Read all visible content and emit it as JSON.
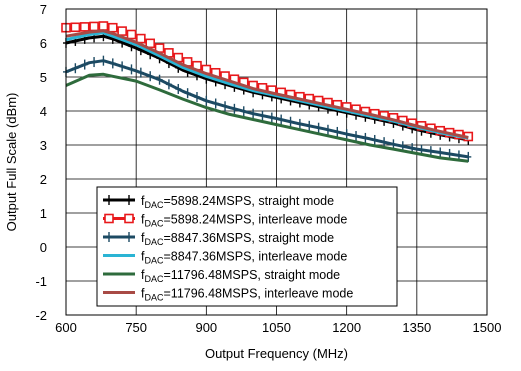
{
  "chart_data": {
    "type": "line",
    "title": "",
    "xlabel": "Output Frequency (MHz)",
    "ylabel": "Output Full Scale (dBm)",
    "xlim": [
      600,
      1500
    ],
    "ylim": [
      -2,
      7
    ],
    "xticks": [
      600,
      750,
      900,
      1050,
      1200,
      1350,
      1500
    ],
    "yticks": [
      -2,
      -1,
      0,
      1,
      2,
      3,
      4,
      5,
      6,
      7
    ],
    "grid": true,
    "legend_position": "bottom-left",
    "series": [
      {
        "name_main": "f",
        "name_sub": "DAC",
        "name_rest": "=5898.24MSPS, straight mode",
        "color": "#000000",
        "marker": "plus",
        "x": [
          600,
          650,
          680,
          700,
          750,
          800,
          850,
          900,
          950,
          1000,
          1050,
          1100,
          1150,
          1200,
          1250,
          1300,
          1350,
          1400,
          1460
        ],
        "y": [
          6.0,
          6.15,
          6.2,
          6.12,
          5.85,
          5.55,
          5.2,
          4.95,
          4.75,
          4.55,
          4.4,
          4.25,
          4.1,
          3.95,
          3.8,
          3.65,
          3.45,
          3.3,
          3.15
        ]
      },
      {
        "name_main": "f",
        "name_sub": "DAC",
        "name_rest": "=5898.24MSPS, interleave mode",
        "color": "#e8181b",
        "marker": "square",
        "x": [
          600,
          650,
          680,
          700,
          750,
          800,
          850,
          900,
          950,
          1000,
          1050,
          1100,
          1150,
          1200,
          1250,
          1300,
          1350,
          1400,
          1460
        ],
        "y": [
          6.45,
          6.48,
          6.5,
          6.45,
          6.2,
          5.85,
          5.5,
          5.22,
          4.98,
          4.75,
          4.58,
          4.42,
          4.28,
          4.12,
          3.95,
          3.8,
          3.6,
          3.42,
          3.25
        ]
      },
      {
        "name_main": "f",
        "name_sub": "DAC",
        "name_rest": "=8847.36MSPS, straight mode",
        "color": "#1c4a63",
        "marker": "plus",
        "x": [
          600,
          650,
          680,
          700,
          750,
          800,
          850,
          900,
          950,
          1000,
          1050,
          1100,
          1150,
          1200,
          1250,
          1300,
          1350,
          1400,
          1460
        ],
        "y": [
          5.15,
          5.42,
          5.48,
          5.4,
          5.18,
          4.92,
          4.58,
          4.3,
          4.1,
          3.92,
          3.78,
          3.62,
          3.48,
          3.32,
          3.18,
          3.02,
          2.88,
          2.78,
          2.65
        ]
      },
      {
        "name_main": "f",
        "name_sub": "DAC",
        "name_rest": "=8847.36MSPS, interleave mode",
        "color": "#2ab4d4",
        "marker": "none",
        "x": [
          600,
          650,
          680,
          700,
          750,
          800,
          850,
          900,
          950,
          1000,
          1050,
          1100,
          1150,
          1200,
          1250,
          1300,
          1350,
          1400,
          1460
        ],
        "y": [
          6.1,
          6.25,
          6.3,
          6.2,
          5.95,
          5.62,
          5.28,
          5.02,
          4.8,
          4.6,
          4.45,
          4.3,
          4.15,
          4.0,
          3.85,
          3.7,
          3.52,
          3.36,
          3.2
        ]
      },
      {
        "name_main": "f",
        "name_sub": "DAC",
        "name_rest": "=11796.48MSPS, straight mode",
        "color": "#2e6b3c",
        "marker": "none",
        "x": [
          600,
          650,
          680,
          700,
          750,
          800,
          850,
          900,
          950,
          1000,
          1050,
          1100,
          1150,
          1200,
          1250,
          1300,
          1350,
          1400,
          1460
        ],
        "y": [
          4.75,
          5.05,
          5.08,
          5.02,
          4.88,
          4.62,
          4.35,
          4.1,
          3.9,
          3.75,
          3.6,
          3.45,
          3.3,
          3.15,
          3.0,
          2.88,
          2.75,
          2.62,
          2.52
        ]
      },
      {
        "name_main": "f",
        "name_sub": "DAC",
        "name_rest": "=11796.48MSPS, interleave mode",
        "color": "#a84a45",
        "marker": "none",
        "x": [
          600,
          650,
          680,
          700,
          750,
          800,
          850,
          900,
          950,
          1000,
          1050,
          1100,
          1150,
          1200,
          1250,
          1300,
          1350,
          1400,
          1460
        ],
        "y": [
          6.2,
          6.32,
          6.36,
          6.28,
          6.02,
          5.7,
          5.36,
          5.1,
          4.88,
          4.66,
          4.5,
          4.35,
          4.2,
          4.05,
          3.9,
          3.74,
          3.56,
          3.4,
          3.22
        ]
      }
    ]
  }
}
